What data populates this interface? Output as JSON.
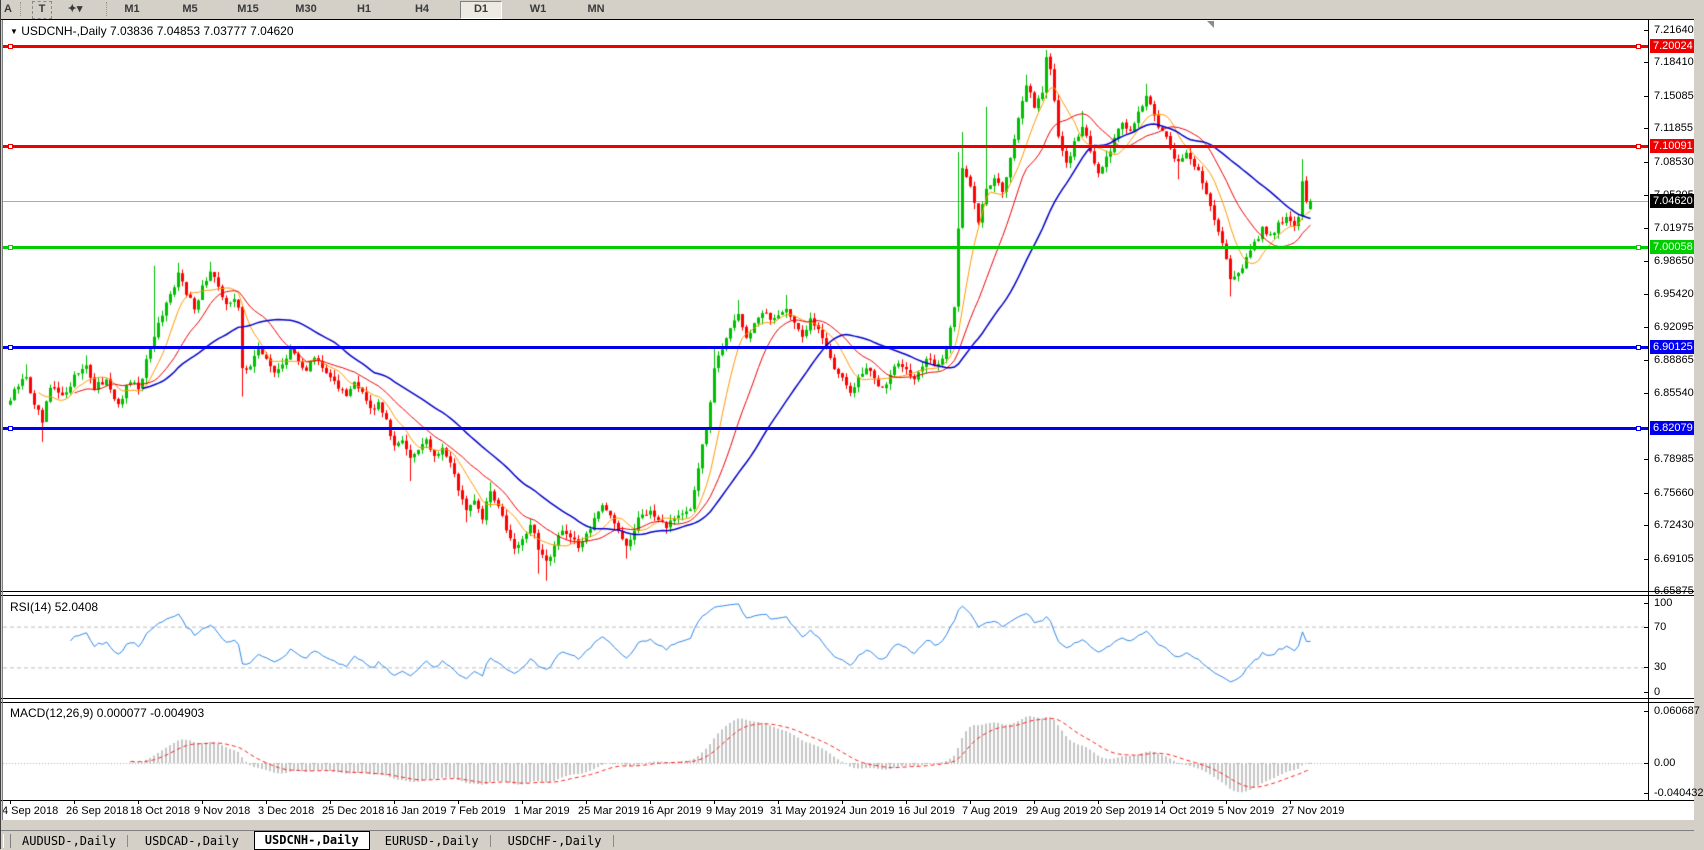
{
  "toolbar": {
    "left_buttons": [
      {
        "label": "A",
        "name": "text-tool-button"
      },
      {
        "label": "T",
        "name": "label-tool-button"
      },
      {
        "label": "✦▾",
        "name": "style-dropdown-button"
      }
    ],
    "timeframes": [
      {
        "label": "M1",
        "active": false
      },
      {
        "label": "M5",
        "active": false
      },
      {
        "label": "M15",
        "active": false
      },
      {
        "label": "M30",
        "active": false
      },
      {
        "label": "H1",
        "active": false
      },
      {
        "label": "H4",
        "active": false
      },
      {
        "label": "D1",
        "active": true
      },
      {
        "label": "W1",
        "active": false
      },
      {
        "label": "MN",
        "active": false
      }
    ]
  },
  "chart_header": {
    "triangle": "▼",
    "symbol": "USDCNH-,Daily",
    "open": "7.03836",
    "high": "7.04853",
    "low": "7.03777",
    "close": "7.04620"
  },
  "price_scale": {
    "ticks": [
      "7.21640",
      "7.18410",
      "7.15085",
      "7.11855",
      "7.08530",
      "7.05205",
      "7.01975",
      "6.98650",
      "6.95420",
      "6.92095",
      "6.88865",
      "6.85540",
      "6.78985",
      "6.75660",
      "6.72430",
      "6.69105",
      "6.65875"
    ],
    "badges": [
      {
        "text": "7.20024",
        "color": "#EE0000"
      },
      {
        "text": "7.10091",
        "color": "#EE0000"
      },
      {
        "text": "7.04620",
        "color": "#000000"
      },
      {
        "text": "7.00058",
        "color": "#00CC00"
      },
      {
        "text": "6.90125",
        "color": "#0000EE"
      },
      {
        "text": "6.82079",
        "color": "#0000EE"
      }
    ]
  },
  "time_scale": [
    "4 Sep 2018",
    "26 Sep 2018",
    "18 Oct 2018",
    "9 Nov 2018",
    "3 Dec 2018",
    "25 Dec 2018",
    "16 Jan 2019",
    "7 Feb 2019",
    "1 Mar 2019",
    "25 Mar 2019",
    "16 Apr 2019",
    "9 May 2019",
    "31 May 2019",
    "24 Jun 2019",
    "16 Jul 2019",
    "7 Aug 2019",
    "29 Aug 2019",
    "20 Sep 2019",
    "14 Oct 2019",
    "5 Nov 2019",
    "27 Nov 2019"
  ],
  "rsi_panel": {
    "label": "RSI(14)",
    "value": "52.0408",
    "scale": [
      {
        "text": "100",
        "v": 100
      },
      {
        "text": "70",
        "v": 70
      },
      {
        "text": "30",
        "v": 30
      },
      {
        "text": "0",
        "v": 0
      }
    ]
  },
  "macd_panel": {
    "label": "MACD(12,26,9)",
    "main_value": "0.000077",
    "signal_value": "-0.004903",
    "scale": [
      {
        "text": "0.060687",
        "v": 0.060687
      },
      {
        "text": "0.00",
        "v": 0
      },
      {
        "text": "-0.040432",
        "v": -0.040432
      }
    ]
  },
  "tabs": [
    {
      "label": "AUDUSD-,Daily",
      "active": false,
      "sep_after": true
    },
    {
      "label": "USDCAD-,Daily",
      "active": false,
      "sep_after": false
    },
    {
      "label": "USDCNH-,Daily",
      "active": true,
      "sep_after": false
    },
    {
      "label": "EURUSD-,Daily",
      "active": false,
      "sep_after": true
    },
    {
      "label": "USDCHF-,Daily",
      "active": false,
      "sep_after": true
    }
  ],
  "colors": {
    "up": "#00BE00",
    "down": "#FF0000",
    "ma_fast": "#FF9900",
    "ma_mid": "#EE0000",
    "ma_slow": "#0000C8",
    "rsi_line": "#2E86E8",
    "rsi_level": "#BDBDBD",
    "macd_hist": "#C6C6C6",
    "macd_signal": "#FF2020",
    "line_red": "#EE0000",
    "line_green": "#00CC00",
    "line_blue": "#0000EE",
    "current_line": "#ABABAB"
  },
  "chart_data": {
    "type": "candlestick",
    "symbol": "USDCNH-",
    "timeframe": "Daily",
    "title": "USDCNH-,Daily 7.03836 7.04853 7.03777 7.04620",
    "last_bar_ohlc": [
      7.03836,
      7.04853,
      7.03777,
      7.0462
    ],
    "bars": 326,
    "x_labels": [
      "4 Sep 2018",
      "26 Sep 2018",
      "18 Oct 2018",
      "9 Nov 2018",
      "3 Dec 2018",
      "25 Dec 2018",
      "16 Jan 2019",
      "7 Feb 2019",
      "1 Mar 2019",
      "25 Mar 2019",
      "16 Apr 2019",
      "9 May 2019",
      "31 May 2019",
      "24 Jun 2019",
      "16 Jul 2019",
      "7 Aug 2019",
      "29 Aug 2019",
      "20 Sep 2019",
      "14 Oct 2019",
      "5 Nov 2019",
      "27 Nov 2019"
    ],
    "bars_per_x_tick": 16,
    "y_axis_range": [
      6.6568,
      7.2263
    ],
    "y_ticks": [
      7.2164,
      7.1841,
      7.15085,
      7.11855,
      7.0853,
      7.05205,
      7.01975,
      6.9865,
      6.9542,
      6.92095,
      6.88865,
      6.8554,
      6.78985,
      6.7566,
      6.7243,
      6.69105,
      6.65875
    ],
    "horizontal_lines": [
      {
        "price": 7.20024,
        "color": "#EE0000"
      },
      {
        "price": 7.10091,
        "color": "#EE0000"
      },
      {
        "price": 7.00058,
        "color": "#00CC00"
      },
      {
        "price": 6.90125,
        "color": "#0000EE"
      },
      {
        "price": 6.82079,
        "color": "#0000EE"
      }
    ],
    "current_price": 7.0462,
    "price_path_anchors": [
      [
        0,
        6.848
      ],
      [
        2,
        6.862
      ],
      [
        4,
        6.872
      ],
      [
        6,
        6.843
      ],
      [
        8,
        6.826
      ],
      [
        10,
        6.86
      ],
      [
        13,
        6.852
      ],
      [
        16,
        6.873
      ],
      [
        19,
        6.884
      ],
      [
        21,
        6.858
      ],
      [
        24,
        6.87
      ],
      [
        27,
        6.843
      ],
      [
        30,
        6.867
      ],
      [
        32,
        6.858
      ],
      [
        34,
        6.888
      ],
      [
        36,
        6.91
      ],
      [
        38,
        6.932
      ],
      [
        40,
        6.955
      ],
      [
        42,
        6.975
      ],
      [
        44,
        6.953
      ],
      [
        46,
        6.94
      ],
      [
        48,
        6.962
      ],
      [
        50,
        6.976
      ],
      [
        52,
        6.96
      ],
      [
        54,
        6.945
      ],
      [
        56,
        6.948
      ],
      [
        57,
        6.94
      ],
      [
        58,
        6.88
      ],
      [
        60,
        6.883
      ],
      [
        62,
        6.9
      ],
      [
        64,
        6.89
      ],
      [
        66,
        6.875
      ],
      [
        68,
        6.885
      ],
      [
        70,
        6.9
      ],
      [
        72,
        6.888
      ],
      [
        74,
        6.878
      ],
      [
        76,
        6.89
      ],
      [
        78,
        6.88
      ],
      [
        80,
        6.872
      ],
      [
        82,
        6.86
      ],
      [
        84,
        6.852
      ],
      [
        86,
        6.868
      ],
      [
        88,
        6.858
      ],
      [
        90,
        6.84
      ],
      [
        92,
        6.848
      ],
      [
        94,
        6.83
      ],
      [
        96,
        6.802
      ],
      [
        98,
        6.81
      ],
      [
        100,
        6.79
      ],
      [
        102,
        6.8
      ],
      [
        104,
        6.81
      ],
      [
        106,
        6.793
      ],
      [
        108,
        6.8
      ],
      [
        110,
        6.785
      ],
      [
        112,
        6.76
      ],
      [
        114,
        6.738
      ],
      [
        116,
        6.748
      ],
      [
        118,
        6.73
      ],
      [
        120,
        6.758
      ],
      [
        122,
        6.744
      ],
      [
        124,
        6.72
      ],
      [
        126,
        6.702
      ],
      [
        128,
        6.71
      ],
      [
        130,
        6.725
      ],
      [
        132,
        6.7
      ],
      [
        134,
        6.688
      ],
      [
        136,
        6.705
      ],
      [
        138,
        6.72
      ],
      [
        140,
        6.712
      ],
      [
        142,
        6.7
      ],
      [
        144,
        6.716
      ],
      [
        146,
        6.73
      ],
      [
        148,
        6.745
      ],
      [
        150,
        6.735
      ],
      [
        152,
        6.72
      ],
      [
        154,
        6.705
      ],
      [
        156,
        6.72
      ],
      [
        158,
        6.735
      ],
      [
        160,
        6.74
      ],
      [
        162,
        6.73
      ],
      [
        164,
        6.72
      ],
      [
        166,
        6.73
      ],
      [
        168,
        6.735
      ],
      [
        170,
        6.74
      ],
      [
        172,
        6.78
      ],
      [
        174,
        6.82
      ],
      [
        176,
        6.88
      ],
      [
        178,
        6.9
      ],
      [
        180,
        6.92
      ],
      [
        182,
        6.935
      ],
      [
        184,
        6.91
      ],
      [
        186,
        6.925
      ],
      [
        188,
        6.934
      ],
      [
        190,
        6.928
      ],
      [
        192,
        6.934
      ],
      [
        194,
        6.94
      ],
      [
        196,
        6.926
      ],
      [
        198,
        6.91
      ],
      [
        200,
        6.93
      ],
      [
        202,
        6.92
      ],
      [
        204,
        6.9
      ],
      [
        206,
        6.88
      ],
      [
        208,
        6.87
      ],
      [
        210,
        6.855
      ],
      [
        212,
        6.87
      ],
      [
        214,
        6.88
      ],
      [
        216,
        6.87
      ],
      [
        218,
        6.862
      ],
      [
        220,
        6.875
      ],
      [
        222,
        6.885
      ],
      [
        224,
        6.878
      ],
      [
        226,
        6.87
      ],
      [
        228,
        6.882
      ],
      [
        230,
        6.888
      ],
      [
        232,
        6.884
      ],
      [
        234,
        6.9
      ],
      [
        236,
        6.942
      ],
      [
        237,
        7.02
      ],
      [
        238,
        7.08
      ],
      [
        240,
        7.06
      ],
      [
        242,
        7.025
      ],
      [
        244,
        7.06
      ],
      [
        246,
        7.07
      ],
      [
        248,
        7.055
      ],
      [
        250,
        7.09
      ],
      [
        252,
        7.13
      ],
      [
        254,
        7.16
      ],
      [
        256,
        7.14
      ],
      [
        258,
        7.155
      ],
      [
        259,
        7.19
      ],
      [
        260,
        7.178
      ],
      [
        261,
        7.145
      ],
      [
        262,
        7.11
      ],
      [
        264,
        7.085
      ],
      [
        266,
        7.105
      ],
      [
        268,
        7.12
      ],
      [
        270,
        7.095
      ],
      [
        272,
        7.075
      ],
      [
        274,
        7.09
      ],
      [
        276,
        7.11
      ],
      [
        278,
        7.125
      ],
      [
        280,
        7.115
      ],
      [
        282,
        7.135
      ],
      [
        284,
        7.15
      ],
      [
        286,
        7.13
      ],
      [
        288,
        7.115
      ],
      [
        290,
        7.1
      ],
      [
        292,
        7.085
      ],
      [
        294,
        7.095
      ],
      [
        296,
        7.08
      ],
      [
        298,
        7.065
      ],
      [
        300,
        7.04
      ],
      [
        302,
        7.015
      ],
      [
        304,
        6.99
      ],
      [
        305,
        6.97
      ],
      [
        307,
        6.975
      ],
      [
        309,
        6.99
      ],
      [
        311,
        7.005
      ],
      [
        313,
        7.02
      ],
      [
        315,
        7.013
      ],
      [
        317,
        7.025
      ],
      [
        319,
        7.03
      ],
      [
        321,
        7.022
      ],
      [
        322,
        7.03
      ],
      [
        323,
        7.065
      ],
      [
        324,
        7.045
      ],
      [
        325,
        7.0462
      ]
    ],
    "wick_extremes": [
      [
        4,
        6.884,
        null
      ],
      [
        8,
        null,
        6.807
      ],
      [
        19,
        6.893,
        null
      ],
      [
        36,
        6.982,
        null
      ],
      [
        42,
        6.985,
        null
      ],
      [
        50,
        6.986,
        null
      ],
      [
        58,
        null,
        6.852
      ],
      [
        100,
        null,
        6.768
      ],
      [
        114,
        null,
        6.727
      ],
      [
        120,
        6.767,
        null
      ],
      [
        132,
        null,
        6.676
      ],
      [
        134,
        null,
        6.669
      ],
      [
        154,
        null,
        6.691
      ],
      [
        176,
        6.9,
        null
      ],
      [
        182,
        6.948,
        null
      ],
      [
        194,
        6.953,
        null
      ],
      [
        237,
        7.095,
        null
      ],
      [
        238,
        7.115,
        null
      ],
      [
        244,
        7.14,
        null
      ],
      [
        254,
        7.172,
        null
      ],
      [
        259,
        7.1965,
        null
      ],
      [
        268,
        7.136,
        null
      ],
      [
        284,
        7.163,
        null
      ],
      [
        292,
        null,
        7.068
      ],
      [
        305,
        null,
        6.9515
      ],
      [
        323,
        7.088,
        null
      ]
    ],
    "indicators": {
      "moving_averages": [
        {
          "period": 8,
          "color": "#FF9900"
        },
        {
          "period": 17,
          "color": "#EE0000"
        },
        {
          "period": 34,
          "color": "#0000C8"
        }
      ],
      "rsi": {
        "period": 14,
        "current": 52.0408,
        "levels": [
          70,
          30
        ],
        "range": [
          0,
          100
        ]
      },
      "macd": {
        "fast": 12,
        "slow": 26,
        "signal": 9,
        "current_main": 7.7e-05,
        "current_signal": -0.004903,
        "scale_max": 0.060687,
        "scale_min": -0.040432
      }
    }
  }
}
